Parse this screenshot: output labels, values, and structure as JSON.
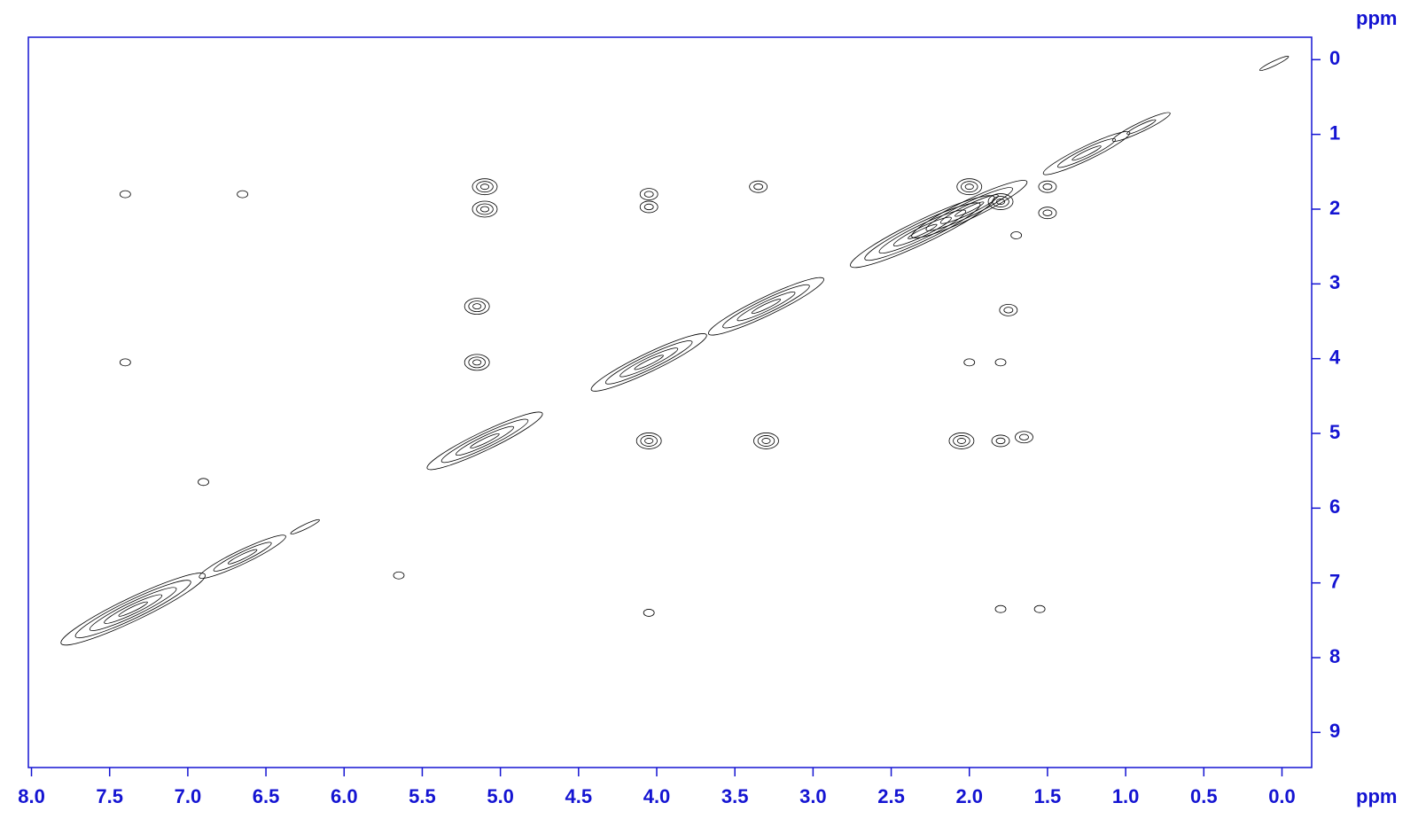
{
  "chart_data": {
    "type": "contour",
    "x_label": "ppm",
    "y_label": "ppm",
    "color": "#000000",
    "axis_color": "#1414d2",
    "xlim": [
      8.02,
      -0.19
    ],
    "ylim": [
      -0.3,
      9.47
    ],
    "xticks": [
      {
        "value": 8,
        "label": "8.0"
      },
      {
        "value": 7.5,
        "label": "7.5"
      },
      {
        "value": 7,
        "label": "7.0"
      },
      {
        "value": 6.5,
        "label": "6.5"
      },
      {
        "value": 6,
        "label": "6.0"
      },
      {
        "value": 5.5,
        "label": "5.5"
      },
      {
        "value": 5,
        "label": "5.0"
      },
      {
        "value": 4.5,
        "label": "4.5"
      },
      {
        "value": 4,
        "label": "4.0"
      },
      {
        "value": 3.5,
        "label": "3.5"
      },
      {
        "value": 3,
        "label": "3.0"
      },
      {
        "value": 2.5,
        "label": "2.5"
      },
      {
        "value": 2,
        "label": "2.0"
      },
      {
        "value": 1.5,
        "label": "1.5"
      },
      {
        "value": 1,
        "label": "1.0"
      },
      {
        "value": 0.5,
        "label": "0.5"
      },
      {
        "value": 0,
        "label": "0.0"
      }
    ],
    "yticks": [
      0,
      1,
      2,
      3,
      4,
      5,
      6,
      7,
      8,
      9
    ],
    "peaks": [
      {
        "x": 7.35,
        "y": 7.35,
        "levels": 5
      },
      {
        "x": 6.65,
        "y": 6.65,
        "levels": 3
      },
      {
        "x": 6.25,
        "y": 6.25,
        "levels": 1
      },
      {
        "x": 5.1,
        "y": 5.1,
        "levels": 4
      },
      {
        "x": 4.05,
        "y": 4.05,
        "levels": 4
      },
      {
        "x": 3.3,
        "y": 3.3,
        "levels": 4
      },
      {
        "x": 2.3,
        "y": 2.3,
        "levels": 5
      },
      {
        "x": 2.0,
        "y": 2.0,
        "levels": 4
      },
      {
        "x": 1.25,
        "y": 1.25,
        "levels": 3
      },
      {
        "x": 0.9,
        "y": 0.9,
        "levels": 2
      },
      {
        "x": 0.05,
        "y": 0.05,
        "levels": 1
      },
      {
        "x": 5.1,
        "y": 1.7,
        "levels": 3
      },
      {
        "x": 5.1,
        "y": 2.0,
        "levels": 3
      },
      {
        "x": 4.05,
        "y": 1.8,
        "levels": 2
      },
      {
        "x": 4.05,
        "y": 1.97,
        "levels": 2
      },
      {
        "x": 3.35,
        "y": 1.7,
        "levels": 2
      },
      {
        "x": 5.15,
        "y": 3.3,
        "levels": 3
      },
      {
        "x": 5.15,
        "y": 4.05,
        "levels": 3
      },
      {
        "x": 4.05,
        "y": 5.1,
        "levels": 3
      },
      {
        "x": 3.3,
        "y": 5.1,
        "levels": 3
      },
      {
        "x": 2.05,
        "y": 5.1,
        "levels": 3
      },
      {
        "x": 1.8,
        "y": 5.1,
        "levels": 2
      },
      {
        "x": 1.65,
        "y": 5.05,
        "levels": 2
      },
      {
        "x": 1.75,
        "y": 3.35,
        "levels": 2
      },
      {
        "x": 2.0,
        "y": 4.05,
        "levels": 1
      },
      {
        "x": 1.8,
        "y": 4.05,
        "levels": 1
      },
      {
        "x": 1.8,
        "y": 1.9,
        "levels": 3
      },
      {
        "x": 1.5,
        "y": 2.05,
        "levels": 2
      },
      {
        "x": 1.7,
        "y": 2.35,
        "levels": 1
      },
      {
        "x": 2.0,
        "y": 1.7,
        "levels": 3
      },
      {
        "x": 1.5,
        "y": 1.7,
        "levels": 2
      },
      {
        "x": 7.4,
        "y": 1.8,
        "levels": 1
      },
      {
        "x": 7.4,
        "y": 4.05,
        "levels": 1
      },
      {
        "x": 6.9,
        "y": 5.65,
        "levels": 1
      },
      {
        "x": 5.65,
        "y": 6.9,
        "levels": 1
      },
      {
        "x": 4.05,
        "y": 7.4,
        "levels": 1
      },
      {
        "x": 1.8,
        "y": 7.35,
        "levels": 1
      },
      {
        "x": 1.55,
        "y": 7.35,
        "levels": 1
      },
      {
        "x": 6.65,
        "y": 1.8,
        "levels": 1
      }
    ]
  }
}
